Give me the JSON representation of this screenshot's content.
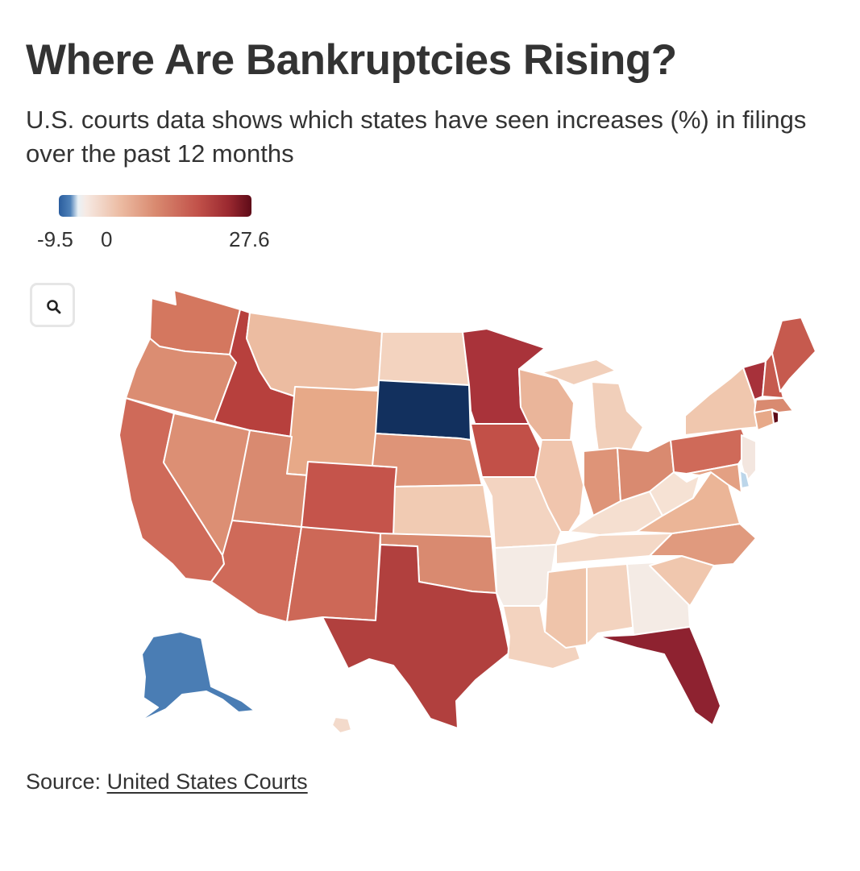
{
  "header": {
    "title": "Where Are Bankruptcies Rising?",
    "subtitle": "U.S. courts data shows which states have seen increases (%) in filings over the past 12 months"
  },
  "legend": {
    "min_label": "-9.5",
    "zero_label": "0",
    "max_label": "27.6",
    "scale": [
      -9.5,
      27.6
    ],
    "colors": {
      "negative": "#2a5d9e",
      "zero": "#f7f2ee",
      "positive": "#5e0b18"
    }
  },
  "controls": {
    "zoom_icon": "search-icon"
  },
  "source": {
    "prefix": "Source: ",
    "link_text": "United States Courts"
  },
  "states": [
    {
      "id": "WA",
      "color": "#d4775f"
    },
    {
      "id": "OR",
      "color": "#db8d72"
    },
    {
      "id": "CA",
      "color": "#cf6a59"
    },
    {
      "id": "NV",
      "color": "#dc8f74"
    },
    {
      "id": "ID",
      "color": "#b7403d"
    },
    {
      "id": "MT",
      "color": "#ecbca1"
    },
    {
      "id": "WY",
      "color": "#e7a988"
    },
    {
      "id": "UT",
      "color": "#d98a70"
    },
    {
      "id": "AZ",
      "color": "#cf6a59"
    },
    {
      "id": "CO",
      "color": "#c5544b"
    },
    {
      "id": "NM",
      "color": "#cd6857"
    },
    {
      "id": "ND",
      "color": "#f3d3bf"
    },
    {
      "id": "SD",
      "color": "#12305e"
    },
    {
      "id": "NE",
      "color": "#de9478"
    },
    {
      "id": "KS",
      "color": "#f1cbb3"
    },
    {
      "id": "OK",
      "color": "#d98a70"
    },
    {
      "id": "TX",
      "color": "#b1403e"
    },
    {
      "id": "MN",
      "color": "#a9333a"
    },
    {
      "id": "IA",
      "color": "#c25048"
    },
    {
      "id": "MO",
      "color": "#f3d4c1"
    },
    {
      "id": "AR",
      "color": "#f4ebe5"
    },
    {
      "id": "LA",
      "color": "#f3d3bf"
    },
    {
      "id": "WI",
      "color": "#eab59a"
    },
    {
      "id": "IL",
      "color": "#f0c5ad"
    },
    {
      "id": "MI",
      "color": "#f1cfba"
    },
    {
      "id": "IN",
      "color": "#de9478"
    },
    {
      "id": "OH",
      "color": "#d98a70"
    },
    {
      "id": "KY",
      "color": "#f5dfd0"
    },
    {
      "id": "TN",
      "color": "#f4d8c6"
    },
    {
      "id": "MS",
      "color": "#efc4aa"
    },
    {
      "id": "AL",
      "color": "#f3d3bf"
    },
    {
      "id": "GA",
      "color": "#f4ebe5"
    },
    {
      "id": "FL",
      "color": "#8e2230"
    },
    {
      "id": "SC",
      "color": "#f0c7ae"
    },
    {
      "id": "NC",
      "color": "#e09a7e"
    },
    {
      "id": "VA",
      "color": "#ebb597"
    },
    {
      "id": "WV",
      "color": "#f6e2d4"
    },
    {
      "id": "PA",
      "color": "#cf6a59"
    },
    {
      "id": "NY",
      "color": "#f0c7ae"
    },
    {
      "id": "VT",
      "color": "#a7313a"
    },
    {
      "id": "NH",
      "color": "#c65a4e"
    },
    {
      "id": "ME",
      "color": "#c65a4e"
    },
    {
      "id": "MA",
      "color": "#d98a70"
    },
    {
      "id": "CT",
      "color": "#e7a989"
    },
    {
      "id": "RI",
      "color": "#5e0b18"
    },
    {
      "id": "NJ",
      "color": "#f3e6df"
    },
    {
      "id": "DE",
      "color": "#bcd6ea"
    },
    {
      "id": "MD",
      "color": "#e3a083"
    },
    {
      "id": "AK",
      "color": "#4a7db4"
    },
    {
      "id": "HI",
      "color": "#f3dacb"
    }
  ]
}
